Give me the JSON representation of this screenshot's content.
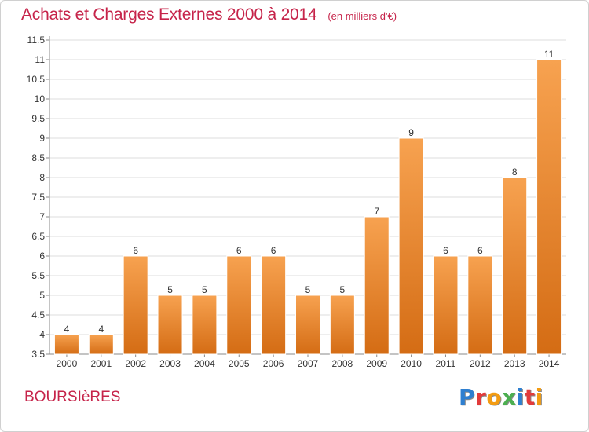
{
  "header": {
    "title": "Achats et Charges Externes 2000 à 2014",
    "unit": "(en milliers d'€)"
  },
  "footer": {
    "place": "BOURSIèRES",
    "logo_text": "Proxiti",
    "logo_colors": [
      "#2e7fd0",
      "#e23b3b",
      "#f39c12",
      "#4caf50",
      "#2e7fd0",
      "#e23b3b",
      "#f39c12"
    ]
  },
  "colors": {
    "bar_top": "#f7a250",
    "bar_bottom": "#d46c14",
    "grid": "#dcdcdc",
    "axis": "#888888",
    "text": "#333333"
  },
  "chart_data": {
    "type": "bar",
    "categories": [
      "2000",
      "2001",
      "2002",
      "2003",
      "2004",
      "2005",
      "2006",
      "2007",
      "2008",
      "2009",
      "2010",
      "2011",
      "2012",
      "2013",
      "2014"
    ],
    "values": [
      4,
      4,
      6,
      5,
      5,
      6,
      6,
      5,
      5,
      7,
      9,
      6,
      6,
      8,
      11
    ],
    "value_labels": [
      "4",
      "4",
      "6",
      "5",
      "5",
      "6",
      "6",
      "5",
      "5",
      "7",
      "9",
      "6",
      "6",
      "8",
      "11"
    ],
    "yticks": [
      "3.5",
      "4",
      "4.5",
      "5",
      "5.5",
      "6",
      "6.5",
      "7",
      "7.5",
      "8",
      "8.5",
      "9",
      "9.5",
      "10",
      "10.5",
      "11",
      "11.5"
    ],
    "ylim": [
      3.5,
      11.5
    ],
    "grid": true,
    "title": "Achats et Charges Externes 2000 à 2014",
    "xlabel": "",
    "ylabel": ""
  }
}
